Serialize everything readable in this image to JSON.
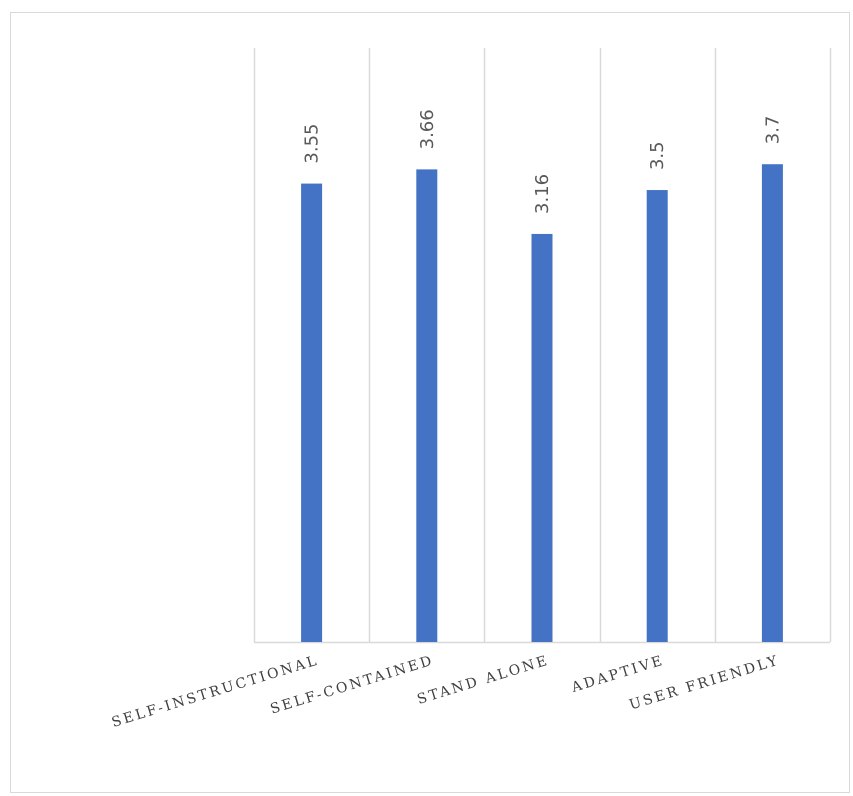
{
  "chart_data": {
    "type": "bar",
    "categories": [
      "SELF-INSTRUCTIONAL",
      "SELF-CONTAINED",
      "STAND ALONE",
      "ADAPTIVE",
      "USER FRIENDLY"
    ],
    "values": [
      3.55,
      3.66,
      3.16,
      3.5,
      3.7
    ],
    "value_labels": [
      "3.55",
      "3.66",
      "3.16",
      "3.5",
      "3.7"
    ],
    "ylim": [
      0,
      4.6
    ],
    "grid": "vertical",
    "bar_color": "#4472c4",
    "grid_color": "#d9d9d9",
    "label_color": "#595959"
  }
}
